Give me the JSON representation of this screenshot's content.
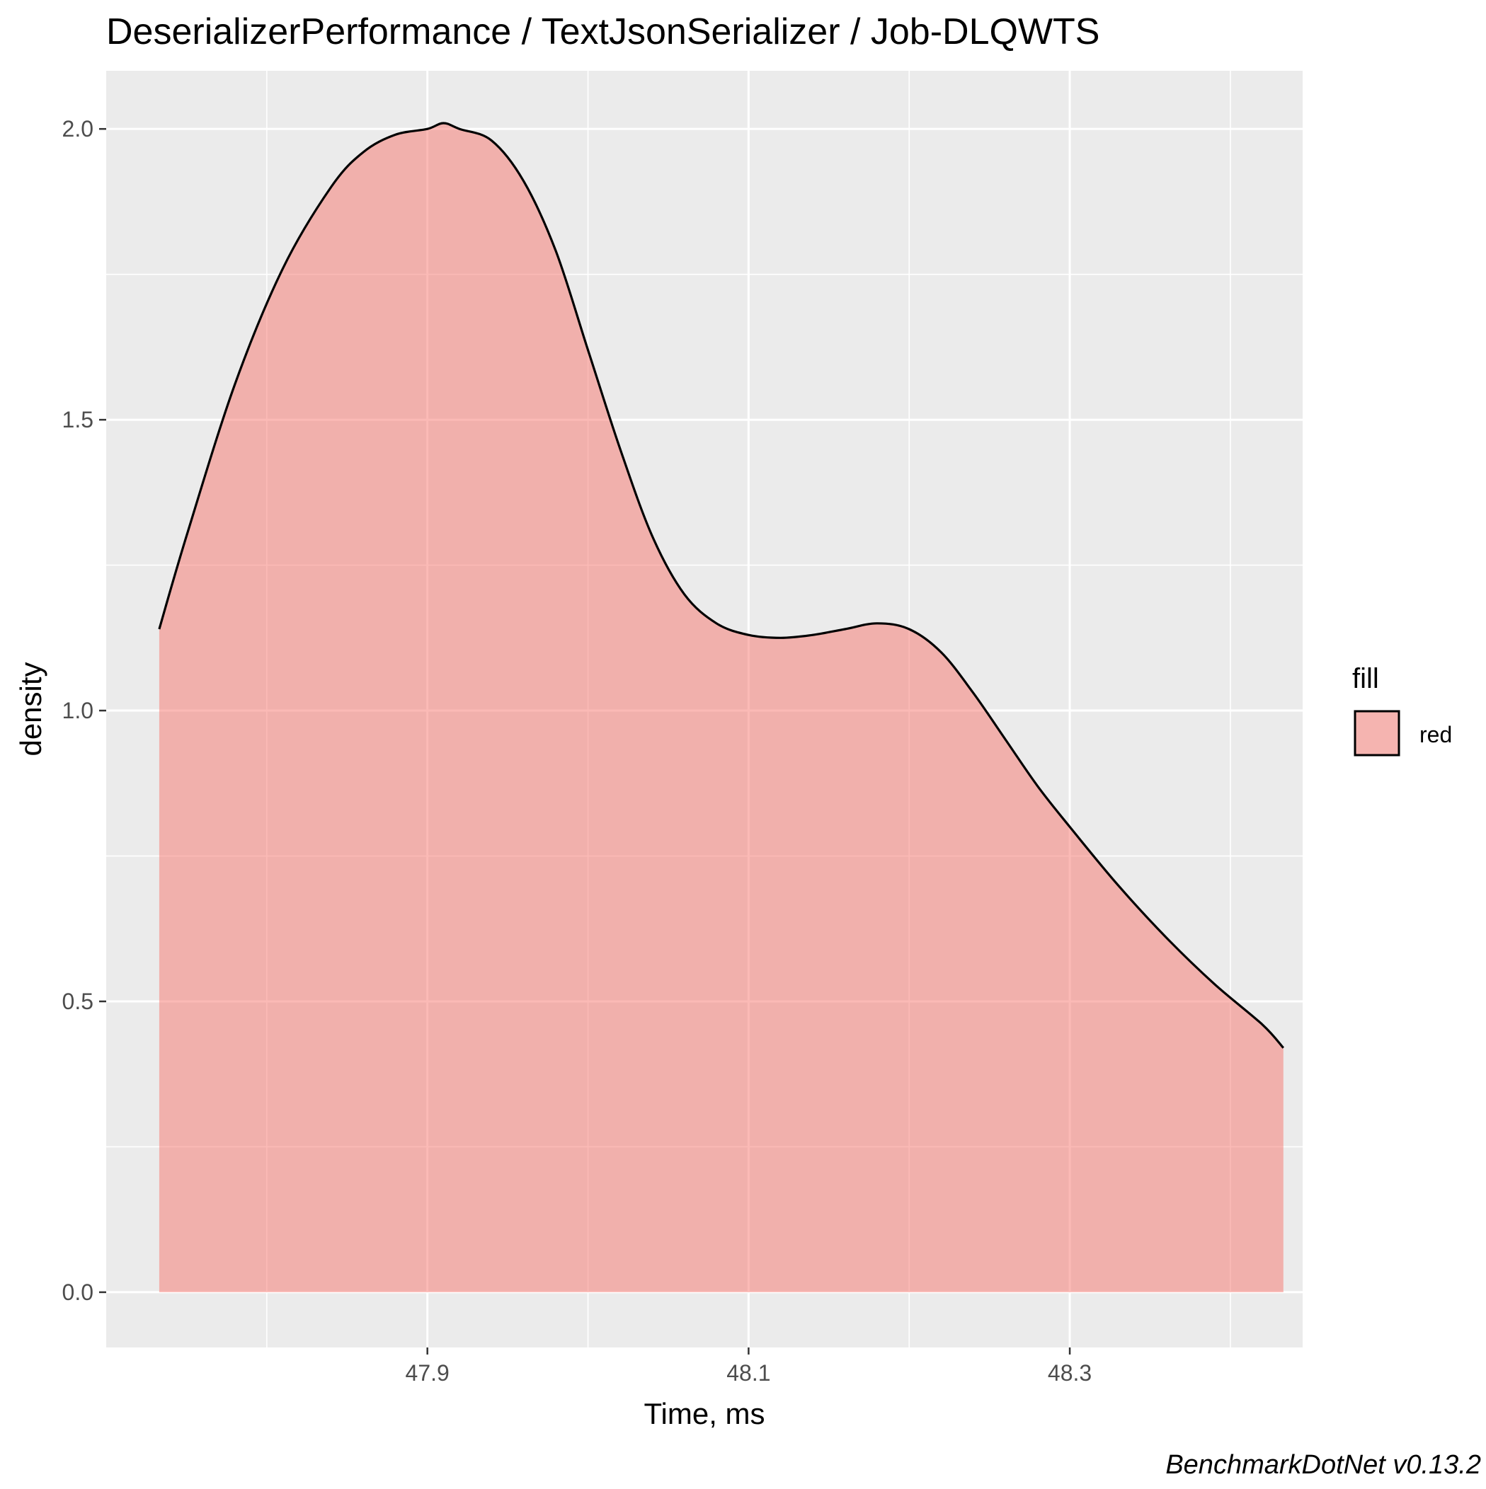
{
  "chart_data": {
    "type": "area",
    "title": "DeserializerPerformance / TextJsonSerializer / Job-DLQWTS",
    "xlabel": "Time, ms",
    "ylabel": "density",
    "caption": "BenchmarkDotNet v0.13.2",
    "xlim": [
      47.7,
      48.445
    ],
    "ylim": [
      -0.095,
      2.1
    ],
    "x_ticks": [
      47.9,
      48.1,
      48.3
    ],
    "x_tick_labels": [
      "47.9",
      "48.1",
      "48.3"
    ],
    "x_minor_ticks": [
      47.8,
      48.0,
      48.2,
      48.4
    ],
    "y_ticks": [
      0.0,
      0.5,
      1.0,
      1.5,
      2.0
    ],
    "y_tick_labels": [
      "0.0",
      "0.5",
      "1.0",
      "1.5",
      "2.0"
    ],
    "y_minor_ticks": [
      0.25,
      0.75,
      1.25,
      1.75
    ],
    "grid": true,
    "legend": {
      "title": "fill",
      "position": "right",
      "entries": [
        {
          "label": "red",
          "color": "#F8766D"
        }
      ]
    },
    "colors": {
      "fill": "#F8766D",
      "fill_opacity": 0.5,
      "outline": "#000000",
      "panel": "#EBEBEB",
      "grid": "#FFFFFF"
    },
    "series": [
      {
        "name": "red",
        "x": [
          47.733,
          47.75,
          47.78,
          47.81,
          47.84,
          47.86,
          47.88,
          47.9,
          47.91,
          47.92,
          47.94,
          47.96,
          47.98,
          48.0,
          48.02,
          48.04,
          48.06,
          48.08,
          48.1,
          48.12,
          48.14,
          48.16,
          48.18,
          48.2,
          48.22,
          48.24,
          48.26,
          48.28,
          48.3,
          48.33,
          48.36,
          48.39,
          48.42,
          48.433
        ],
        "y": [
          1.14,
          1.3,
          1.56,
          1.76,
          1.9,
          1.96,
          1.99,
          2.0,
          2.01,
          2.0,
          1.98,
          1.91,
          1.79,
          1.62,
          1.45,
          1.3,
          1.2,
          1.15,
          1.13,
          1.125,
          1.13,
          1.14,
          1.15,
          1.14,
          1.1,
          1.03,
          0.95,
          0.87,
          0.8,
          0.7,
          0.61,
          0.53,
          0.46,
          0.42
        ]
      }
    ]
  }
}
